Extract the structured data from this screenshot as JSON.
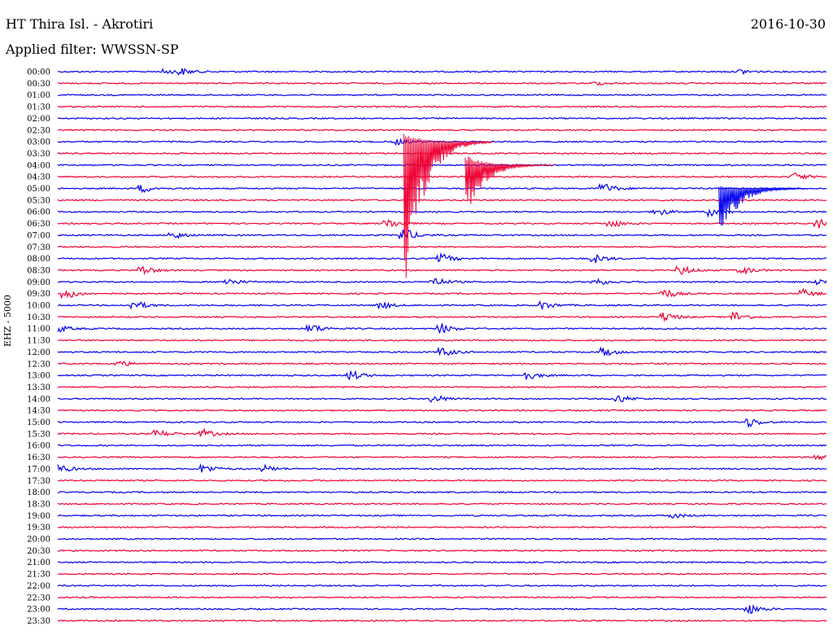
{
  "header": {
    "station": "HT Thira Isl. - Akrotiri",
    "date": "2016-10-30",
    "filter": "Applied filter: WWSSN-SP",
    "channel": "EHZ - 5000"
  },
  "colors": {
    "trace_a": "#0000ee",
    "trace_b": "#ee0033"
  },
  "chart_data": {
    "type": "line",
    "title": "HT Thira Isl. - Akrotiri",
    "subtitle": "Applied filter: WWSSN-SP",
    "ylabel": "EHZ - 5000",
    "row_labels": [
      "00:00",
      "00:30",
      "01:00",
      "01:30",
      "02:00",
      "02:30",
      "03:00",
      "03:30",
      "04:00",
      "04:30",
      "05:00",
      "05:30",
      "06:00",
      "06:30",
      "07:00",
      "07:30",
      "08:00",
      "08:30",
      "09:00",
      "09:30",
      "10:00",
      "10:30",
      "11:00",
      "11:30",
      "12:00",
      "12:30",
      "13:00",
      "13:30",
      "14:00",
      "14:30",
      "15:00",
      "15:30",
      "16:00",
      "16:30",
      "17:00",
      "17:30",
      "18:00",
      "18:30",
      "19:00",
      "19:30",
      "20:00",
      "20:30",
      "21:00",
      "21:30",
      "22:00",
      "22:30",
      "23:00",
      "23:30"
    ],
    "row_minutes": 30,
    "series": [
      {
        "color": "trace_a",
        "rows": "even",
        "noise_level": 0.8,
        "events": [
          {
            "row": 0,
            "t": 0.14,
            "amp": 3
          },
          {
            "row": 0,
            "t": 0.16,
            "amp": 4
          },
          {
            "row": 0,
            "t": 0.89,
            "amp": 3
          },
          {
            "row": 6,
            "t": 0.44,
            "amp": 4
          },
          {
            "row": 10,
            "t": 0.11,
            "amp": 5
          },
          {
            "row": 10,
            "t": 0.71,
            "amp": 7
          },
          {
            "row": 12,
            "t": 0.78,
            "amp": 5
          },
          {
            "row": 12,
            "t": 0.85,
            "amp": 6
          },
          {
            "row": 14,
            "t": 0.15,
            "amp": 5
          },
          {
            "row": 14,
            "t": 0.45,
            "amp": 9
          },
          {
            "row": 16,
            "t": 0.5,
            "amp": 6
          },
          {
            "row": 16,
            "t": 0.7,
            "amp": 5
          },
          {
            "row": 18,
            "t": 0.22,
            "amp": 5
          },
          {
            "row": 18,
            "t": 0.49,
            "amp": 6
          },
          {
            "row": 18,
            "t": 0.7,
            "amp": 5
          },
          {
            "row": 18,
            "t": 0.99,
            "amp": 4
          },
          {
            "row": 20,
            "t": 0.1,
            "amp": 6
          },
          {
            "row": 20,
            "t": 0.42,
            "amp": 5
          },
          {
            "row": 20,
            "t": 0.63,
            "amp": 5
          },
          {
            "row": 22,
            "t": 0.0,
            "amp": 5
          },
          {
            "row": 22,
            "t": 0.33,
            "amp": 6
          },
          {
            "row": 22,
            "t": 0.5,
            "amp": 6
          },
          {
            "row": 24,
            "t": 0.5,
            "amp": 6
          },
          {
            "row": 24,
            "t": 0.71,
            "amp": 6
          },
          {
            "row": 26,
            "t": 0.38,
            "amp": 7
          },
          {
            "row": 26,
            "t": 0.61,
            "amp": 6
          },
          {
            "row": 28,
            "t": 0.49,
            "amp": 5
          },
          {
            "row": 28,
            "t": 0.73,
            "amp": 5
          },
          {
            "row": 30,
            "t": 0.9,
            "amp": 6
          },
          {
            "row": 34,
            "t": 0.0,
            "amp": 6
          },
          {
            "row": 34,
            "t": 0.19,
            "amp": 6
          },
          {
            "row": 34,
            "t": 0.27,
            "amp": 4
          },
          {
            "row": 38,
            "t": 0.8,
            "amp": 3
          },
          {
            "row": 46,
            "t": 0.9,
            "amp": 6
          }
        ]
      },
      {
        "color": "trace_b",
        "rows": "odd",
        "noise_level": 0.8,
        "events": [
          {
            "row": 1,
            "t": 0.7,
            "amp": 2
          },
          {
            "row": 9,
            "t": 0.96,
            "amp": 5
          },
          {
            "row": 13,
            "t": 0.43,
            "amp": 6
          },
          {
            "row": 13,
            "t": 0.72,
            "amp": 5
          },
          {
            "row": 13,
            "t": 0.99,
            "amp": 6
          },
          {
            "row": 17,
            "t": 0.11,
            "amp": 6
          },
          {
            "row": 17,
            "t": 0.81,
            "amp": 6
          },
          {
            "row": 17,
            "t": 0.89,
            "amp": 5
          },
          {
            "row": 19,
            "t": 0.01,
            "amp": 7
          },
          {
            "row": 19,
            "t": 0.79,
            "amp": 6
          },
          {
            "row": 19,
            "t": 0.97,
            "amp": 5
          },
          {
            "row": 21,
            "t": 0.79,
            "amp": 6
          },
          {
            "row": 21,
            "t": 0.88,
            "amp": 7
          },
          {
            "row": 25,
            "t": 0.08,
            "amp": 4
          },
          {
            "row": 31,
            "t": 0.13,
            "amp": 5
          },
          {
            "row": 31,
            "t": 0.19,
            "amp": 5
          },
          {
            "row": 33,
            "t": 0.99,
            "amp": 4
          }
        ]
      }
    ],
    "major_events": [
      {
        "row": 6,
        "t": 0.45,
        "peak_up_rows": 0.7,
        "peak_down_rows": 15.3,
        "color": "trace_b"
      },
      {
        "row": 8,
        "t": 0.53,
        "peak_up_rows": 0.9,
        "peak_down_rows": 5.0,
        "color": "trace_b"
      },
      {
        "row": 10,
        "t": 0.86,
        "peak_up_rows": 0.2,
        "peak_down_rows": 5.0,
        "color": "trace_a"
      }
    ]
  }
}
